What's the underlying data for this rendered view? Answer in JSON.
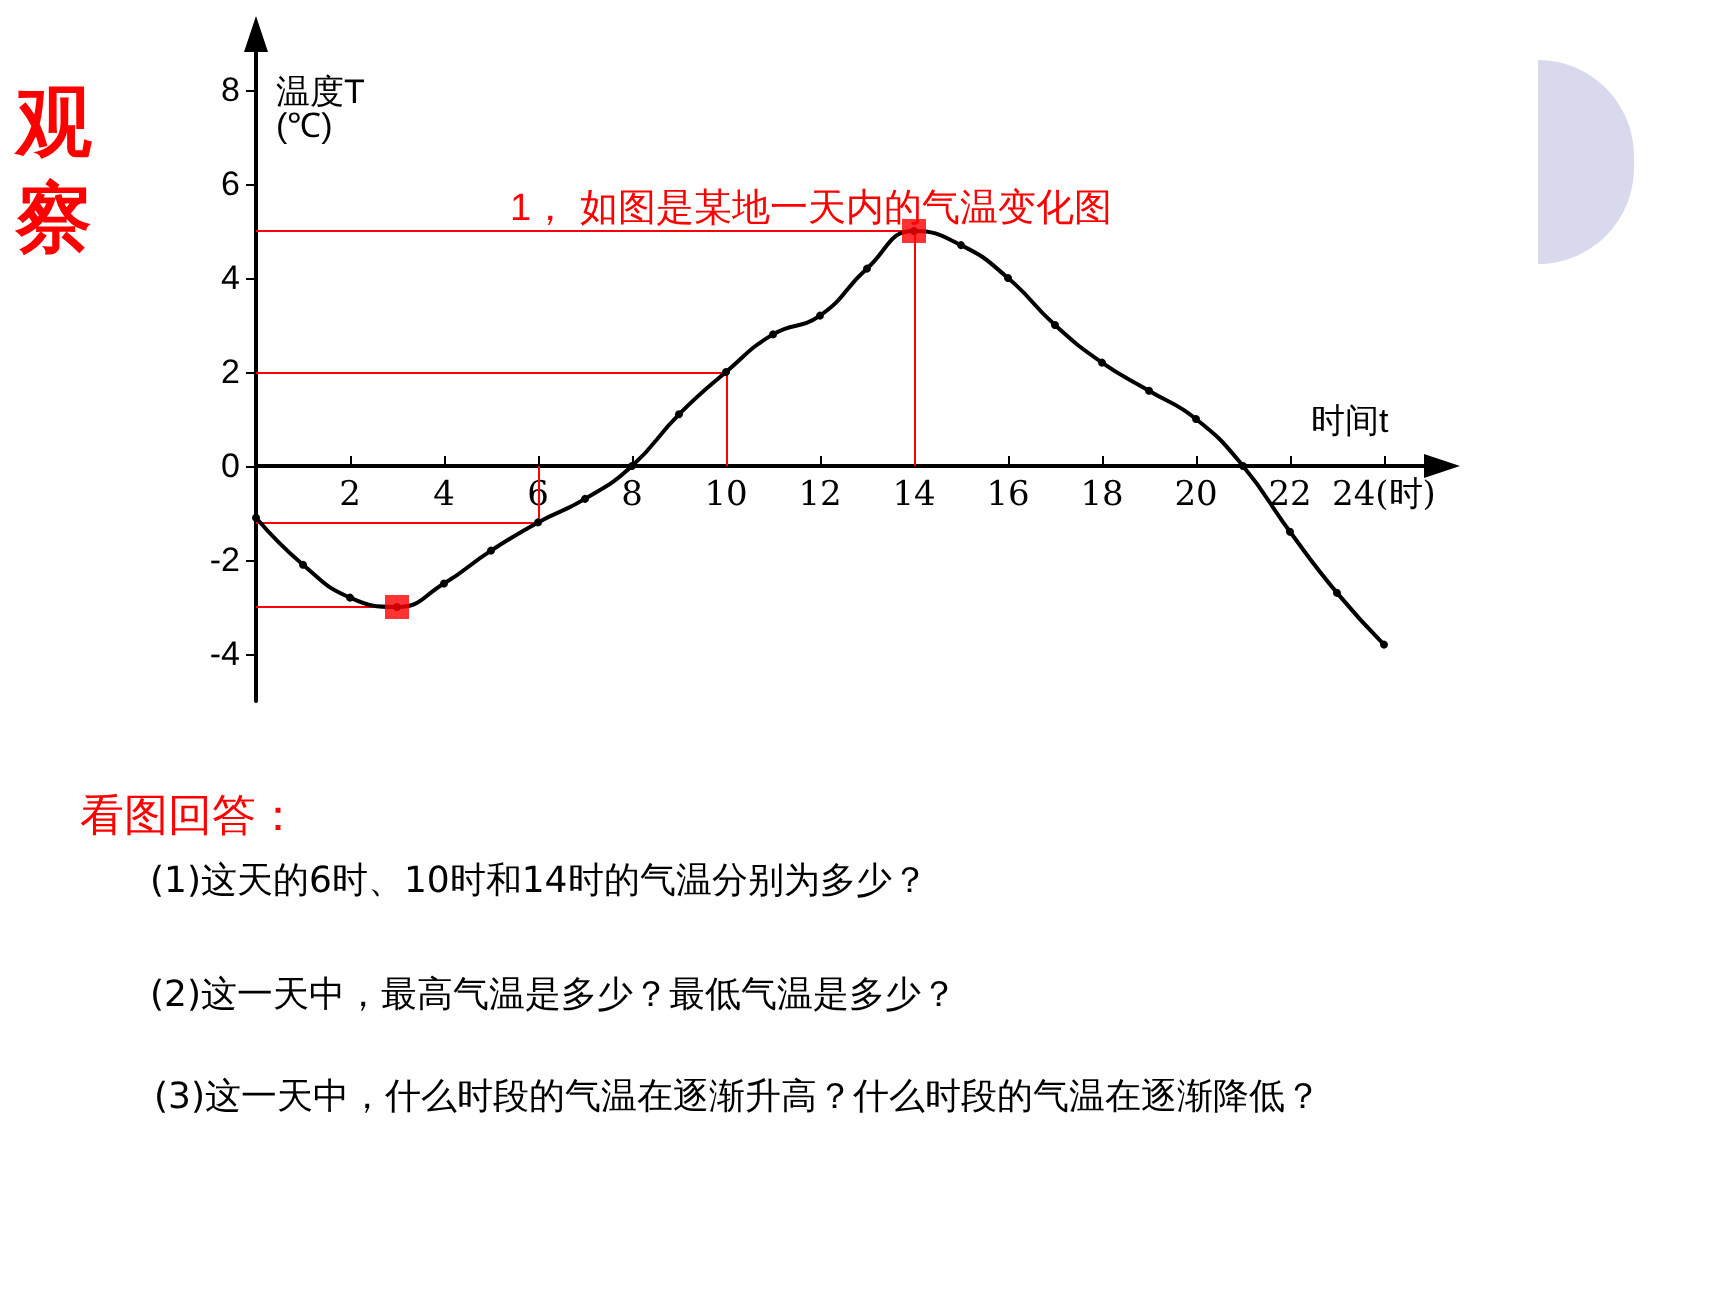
{
  "chart_data": {
    "type": "line",
    "title": "1， 如图是某地一天内的气温变化图",
    "xlabel": "时间t",
    "ylabel": "温度T\n(℃)",
    "x": [
      0,
      1,
      2,
      3,
      4,
      5,
      6,
      7,
      8,
      9,
      10,
      11,
      12,
      13,
      14,
      15,
      16,
      17,
      18,
      19,
      20,
      21,
      22,
      23,
      24
    ],
    "series": [
      {
        "color": "#000000",
        "marker": "circle",
        "values": [
          -1.1,
          -2.1,
          -2.8,
          -3,
          -2.5,
          -1.8,
          -1.2,
          -0.7,
          0,
          1.1,
          2,
          2.8,
          3.2,
          4.2,
          5,
          4.7,
          4,
          3,
          2.2,
          1.6,
          1,
          0,
          -1.4,
          -2.7,
          -3.8
        ]
      },
      {
        "type": "scatter",
        "color": "#ff0000",
        "marker": "square",
        "x": [
          3,
          14
        ],
        "values": [
          -3,
          5
        ]
      }
    ],
    "xlim": [
      0,
      25
    ],
    "xticks": [
      2,
      4,
      6,
      8,
      10,
      12,
      14,
      16,
      18,
      20,
      22,
      {
        "value": 24,
        "label": "24(时)"
      }
    ],
    "ylim": [
      -5,
      9
    ],
    "yticks": [
      -4,
      -2,
      0,
      2,
      4,
      6,
      8
    ],
    "ref_lines": [
      {
        "axis": "y",
        "value": 5,
        "color": "#ff0000"
      },
      {
        "axis": "y",
        "value": 2,
        "color": "#ff0000"
      },
      {
        "axis": "y",
        "value": -1.2,
        "color": "#ff0000"
      },
      {
        "axis": "y",
        "value": -3,
        "color": "#ff0000"
      },
      {
        "axis": "x",
        "value": 14,
        "color": "#ff0000"
      },
      {
        "axis": "x",
        "value": 10,
        "color": "#ff0000"
      },
      {
        "axis": "x",
        "value": 6,
        "color": "#ff0000"
      }
    ],
    "grid": false,
    "annotations": [
      "观察",
      "看图回答：",
      "(1)这天的6时、10时和14时的气温分别为多少？",
      "(2)这一天中，最高气温是多少？最低气温是多少？",
      "(3)这一天中，什么时段的气温在逐渐升高？什么时段的气温在逐渐降低？"
    ]
  }
}
